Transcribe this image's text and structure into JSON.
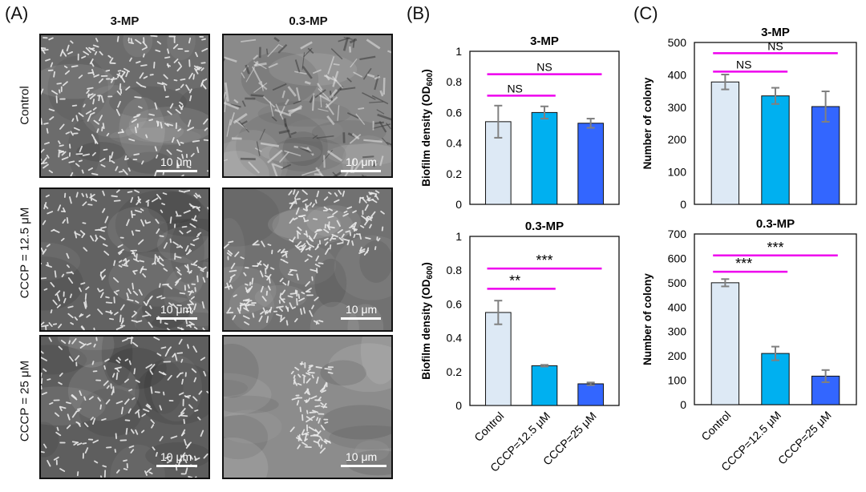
{
  "panel_A": {
    "letter": "(A)",
    "columns": [
      "3-MP",
      "0.3-MP"
    ],
    "rows": [
      "Control",
      "CCCP = 12.5 μM",
      "CCCP = 25 μM"
    ],
    "scale_bar_label": "10 μm"
  },
  "panel_B": {
    "letter": "(B)"
  },
  "panel_C": {
    "letter": "(C)"
  },
  "colors": {
    "control": "#dde9f5",
    "cccp_12_5": "#00b0f0",
    "cccp_25": "#3366ff",
    "significance_line": "#ee00ee",
    "error_bar": "#808080"
  },
  "chart_data": [
    {
      "id": "B-3MP",
      "type": "bar",
      "title": "3-MP",
      "ylabel": "Biofilm density (OD600)",
      "ylabel_main": "Biofilm density (OD",
      "ylabel_sub": "600",
      "ylabel_close": ")",
      "categories": [
        "Control",
        "CCCP=12.5 μM",
        "CCCP=25 μM"
      ],
      "values": [
        0.54,
        0.6,
        0.53
      ],
      "errors": [
        0.105,
        0.04,
        0.03
      ],
      "ylim": [
        0,
        1
      ],
      "yticks": [
        0,
        0.2,
        0.4,
        0.6,
        0.8,
        1
      ],
      "ytick_labels": [
        "0",
        "0.2",
        "0.4",
        "0.6",
        "0.8",
        "1"
      ],
      "show_xlabels": false,
      "significance": [
        {
          "from": 0,
          "to": 1,
          "y": 0.71,
          "label": "NS"
        },
        {
          "from": 0,
          "to": 2,
          "y": 0.85,
          "label": "NS"
        }
      ]
    },
    {
      "id": "B-03MP",
      "type": "bar",
      "title": "0.3-MP",
      "ylabel": "Biofilm density (OD600)",
      "ylabel_main": "Biofilm density (OD",
      "ylabel_sub": "600",
      "ylabel_close": ")",
      "categories": [
        "Control",
        "CCCP=12.5 μM",
        "CCCP=25 μM"
      ],
      "values": [
        0.55,
        0.235,
        0.128
      ],
      "errors": [
        0.07,
        0.005,
        0.008
      ],
      "ylim": [
        0,
        1
      ],
      "yticks": [
        0,
        0.2,
        0.4,
        0.6,
        0.8,
        1
      ],
      "ytick_labels": [
        "0",
        "0.2",
        "0.4",
        "0.6",
        "0.8",
        "1"
      ],
      "show_xlabels": true,
      "significance": [
        {
          "from": 0,
          "to": 1,
          "y": 0.69,
          "label": "**"
        },
        {
          "from": 0,
          "to": 2,
          "y": 0.81,
          "label": "***"
        }
      ]
    },
    {
      "id": "C-3MP",
      "type": "bar",
      "title": "3-MP",
      "ylabel": "Number of colony",
      "categories": [
        "Control",
        "CCCP=12.5 μM",
        "CCCP=25 μM"
      ],
      "values": [
        378,
        335,
        302
      ],
      "errors": [
        23,
        25,
        47
      ],
      "ylim": [
        0,
        500
      ],
      "yticks": [
        0,
        100,
        200,
        300,
        400,
        500
      ],
      "ytick_labels": [
        "0",
        "100",
        "200",
        "300",
        "400",
        "500"
      ],
      "show_xlabels": false,
      "significance": [
        {
          "from": 0,
          "to": 1,
          "y": 410,
          "label": "NS"
        },
        {
          "from": 0,
          "to": 2,
          "y": 467,
          "label": "NS"
        }
      ]
    },
    {
      "id": "C-03MP",
      "type": "bar",
      "title": "0.3-MP",
      "ylabel": "Number of colony",
      "categories": [
        "Control",
        "CCCP=12.5 μM",
        "CCCP=25 μM"
      ],
      "values": [
        500,
        210,
        117
      ],
      "errors": [
        15,
        28,
        25
      ],
      "ylim": [
        0,
        700
      ],
      "yticks": [
        0,
        100,
        200,
        300,
        400,
        500,
        600,
        700
      ],
      "ytick_labels": [
        "0",
        "100",
        "200",
        "300",
        "400",
        "500",
        "600",
        "700"
      ],
      "show_xlabels": true,
      "significance": [
        {
          "from": 0,
          "to": 1,
          "y": 545,
          "label": "***"
        },
        {
          "from": 0,
          "to": 2,
          "y": 612,
          "label": "***"
        }
      ]
    }
  ]
}
